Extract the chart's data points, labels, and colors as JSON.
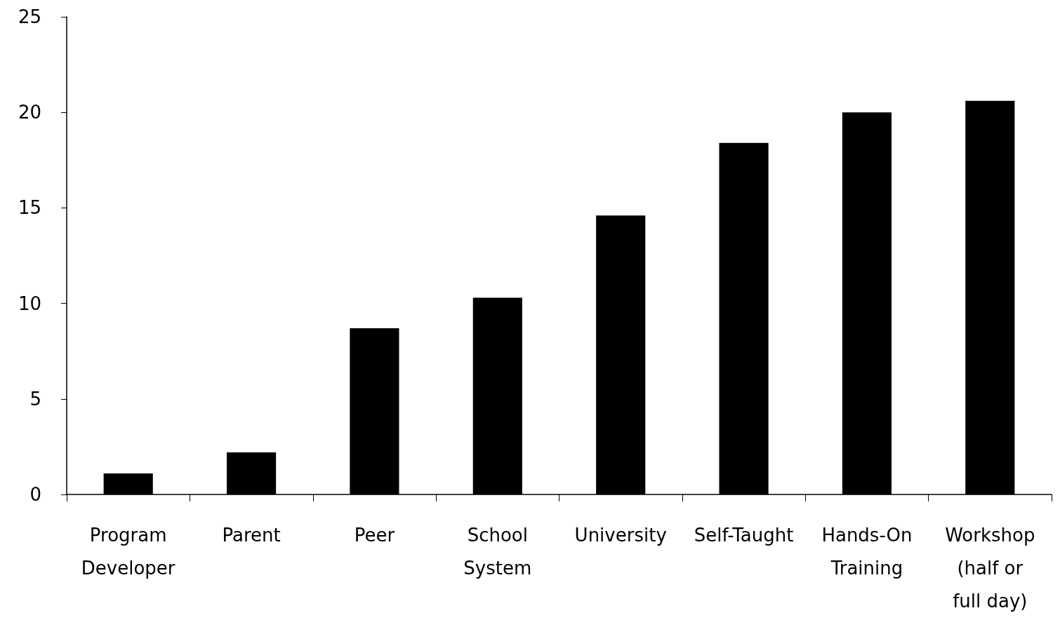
{
  "chart_data": {
    "type": "bar",
    "categories": [
      "Program Developer",
      "Parent",
      "Peer",
      "School System",
      "University",
      "Self-Taught",
      "Hands-On Training",
      "Workshop (half or full day)"
    ],
    "values": [
      1.1,
      2.2,
      8.7,
      10.3,
      14.6,
      18.4,
      20.0,
      20.6
    ],
    "color": "#000000",
    "ylim": [
      0,
      25
    ],
    "yticks": [
      0,
      5,
      10,
      15,
      20,
      25
    ],
    "grid": false
  }
}
